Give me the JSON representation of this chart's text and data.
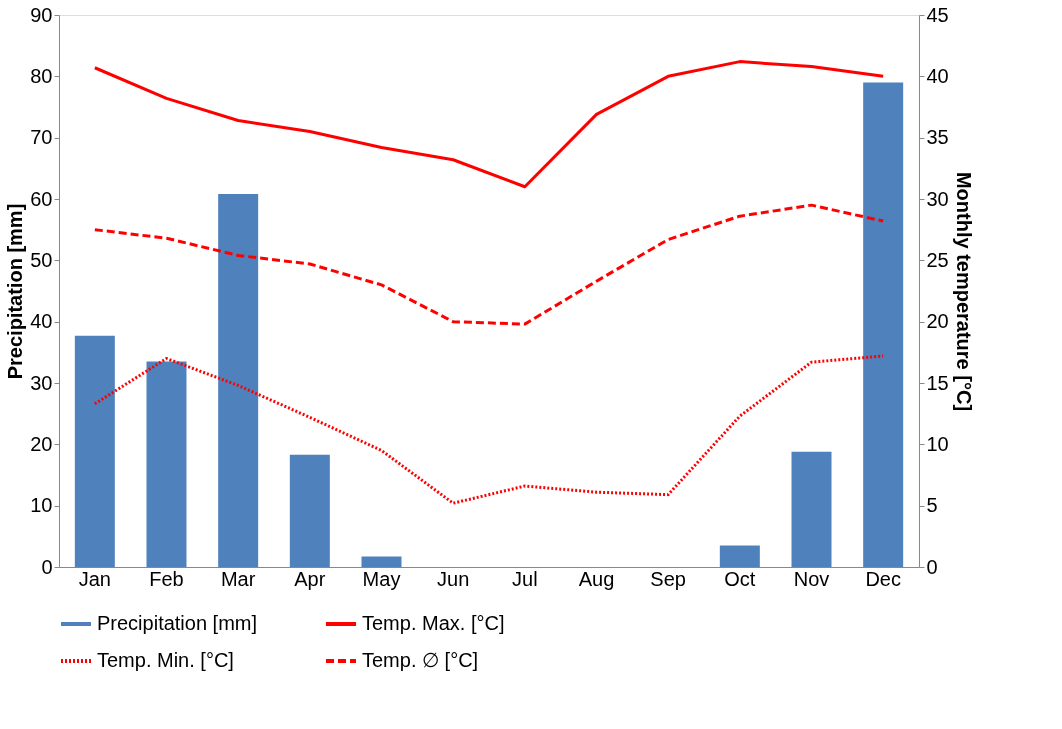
{
  "chart_data": {
    "type": "bar",
    "ylabel": "Precipitation [mm]",
    "y2label": "Monthly temperature [°C]",
    "categories": [
      "Jan",
      "Feb",
      "Mar",
      "Apr",
      "May",
      "Jun",
      "Jul",
      "Aug",
      "Sep",
      "Oct",
      "Nov",
      "Dec"
    ],
    "series": [
      {
        "name": "Precipitation [mm]",
        "color": "#4f81bd",
        "values": [
          37.7,
          33.5,
          60.8,
          18.3,
          1.7,
          0,
          0,
          0,
          0,
          3.5,
          18.8,
          79
        ]
      },
      {
        "name": "Temp. Max. [°C]",
        "type": "line",
        "axis": "y2",
        "line_style": "solid",
        "color": "#ff0000",
        "values": [
          40.7,
          38.2,
          36.4,
          35.5,
          34.2,
          33.2,
          31.0,
          36.9,
          40.0,
          41.2,
          40.8,
          40.0
        ]
      },
      {
        "name": "Temp. Min. [°C]",
        "type": "line",
        "axis": "y2",
        "line_style": "dotted",
        "color": "#ff0000",
        "values": [
          13.3,
          17.0,
          14.8,
          12.2,
          9.5,
          5.2,
          6.6,
          6.1,
          5.9,
          12.3,
          16.7,
          17.2
        ]
      },
      {
        "name": "Temp. ∅ [°C]",
        "type": "line",
        "axis": "y2",
        "line_style": "dashed",
        "color": "#ff0000",
        "values": [
          27.5,
          26.8,
          25.4,
          24.7,
          23.0,
          20.0,
          19.8,
          23.3,
          26.7,
          28.6,
          29.5,
          28.2
        ]
      }
    ],
    "ylim": [
      0,
      90
    ],
    "yticks": [
      0,
      10,
      20,
      30,
      40,
      50,
      60,
      70,
      80,
      90
    ],
    "y2lim": [
      0,
      45
    ],
    "y2ticks": [
      0,
      5,
      10,
      15,
      20,
      25,
      30,
      35,
      40,
      45
    ],
    "grid": false,
    "legend": "bottom",
    "marker": "none"
  }
}
